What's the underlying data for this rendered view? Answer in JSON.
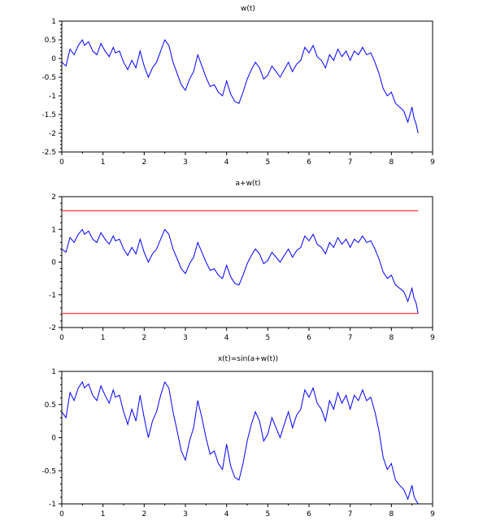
{
  "figure": {
    "background": "#ffffff",
    "axis_color": "#000000"
  },
  "chart_data": [
    {
      "type": "line",
      "title": "w(t)",
      "xlabel": "",
      "ylabel": "",
      "xlim": [
        0,
        9
      ],
      "ylim": [
        -2.5,
        1
      ],
      "x_ticks": [
        0,
        1,
        2,
        3,
        4,
        5,
        6,
        7,
        8,
        9
      ],
      "y_ticks": [
        -2.5,
        -2,
        -1.5,
        -1,
        -0.5,
        0,
        0.5,
        1
      ],
      "x_tick_labels": [
        "0",
        "1",
        "2",
        "3",
        "4",
        "5",
        "6",
        "7",
        "8",
        "9"
      ],
      "y_tick_labels": [
        "-2.5",
        "-2",
        "-1.5",
        "-1",
        "-0.5",
        "0",
        "0.5",
        "1"
      ],
      "grid": false,
      "series": [
        {
          "color": "#0000ff",
          "x": [
            0,
            0.1,
            0.2,
            0.3,
            0.4,
            0.5,
            0.55,
            0.65,
            0.75,
            0.85,
            0.95,
            1.05,
            1.15,
            1.25,
            1.3,
            1.4,
            1.5,
            1.6,
            1.7,
            1.8,
            1.9,
            2.0,
            2.1,
            2.2,
            2.3,
            2.4,
            2.5,
            2.6,
            2.7,
            2.8,
            2.9,
            3.0,
            3.1,
            3.2,
            3.3,
            3.4,
            3.5,
            3.6,
            3.7,
            3.8,
            3.9,
            4.0,
            4.1,
            4.2,
            4.3,
            4.4,
            4.5,
            4.6,
            4.7,
            4.8,
            4.9,
            5.0,
            5.1,
            5.2,
            5.3,
            5.4,
            5.5,
            5.6,
            5.7,
            5.8,
            5.9,
            6.0,
            6.1,
            6.2,
            6.3,
            6.4,
            6.5,
            6.6,
            6.7,
            6.8,
            6.9,
            7.0,
            7.1,
            7.2,
            7.3,
            7.4,
            7.5,
            7.6,
            7.7,
            7.8,
            7.9,
            8.0,
            8.1,
            8.2,
            8.3,
            8.4,
            8.5,
            8.55,
            8.6,
            8.65
          ],
          "y": [
            -0.1,
            -0.2,
            0.25,
            0.1,
            0.35,
            0.5,
            0.35,
            0.45,
            0.2,
            0.1,
            0.4,
            0.2,
            0.05,
            0.3,
            0.15,
            0.2,
            -0.1,
            -0.3,
            -0.05,
            -0.25,
            0.2,
            -0.2,
            -0.5,
            -0.25,
            -0.1,
            0.2,
            0.5,
            0.35,
            -0.1,
            -0.4,
            -0.7,
            -0.85,
            -0.55,
            -0.35,
            0.1,
            -0.2,
            -0.5,
            -0.75,
            -0.7,
            -0.9,
            -1.0,
            -0.6,
            -0.95,
            -1.15,
            -1.2,
            -0.9,
            -0.55,
            -0.3,
            -0.1,
            -0.25,
            -0.55,
            -0.45,
            -0.2,
            -0.35,
            -0.5,
            -0.3,
            -0.1,
            -0.35,
            -0.15,
            -0.05,
            0.3,
            0.15,
            0.35,
            0.05,
            -0.05,
            -0.25,
            0.1,
            -0.05,
            0.25,
            0.05,
            0.2,
            -0.05,
            0.2,
            0.1,
            0.3,
            0.1,
            0.15,
            -0.1,
            -0.4,
            -0.8,
            -1.0,
            -0.9,
            -1.2,
            -1.3,
            -1.4,
            -1.7,
            -1.3,
            -1.6,
            -1.75,
            -2.0
          ]
        }
      ]
    },
    {
      "type": "line",
      "title": "a+w(t)",
      "xlabel": "",
      "ylabel": "",
      "xlim": [
        0,
        9
      ],
      "ylim": [
        -2,
        2
      ],
      "x_ticks": [
        0,
        1,
        2,
        3,
        4,
        5,
        6,
        7,
        8,
        9
      ],
      "y_ticks": [
        -2,
        -1,
        0,
        1,
        2
      ],
      "x_tick_labels": [
        "0",
        "1",
        "2",
        "3",
        "4",
        "5",
        "6",
        "7",
        "8",
        "9"
      ],
      "y_tick_labels": [
        "-2",
        "-1",
        "0",
        "1",
        "2"
      ],
      "grid": false,
      "series": [
        {
          "color": "#0000ff",
          "x": [
            0,
            0.1,
            0.2,
            0.3,
            0.4,
            0.5,
            0.55,
            0.65,
            0.75,
            0.85,
            0.95,
            1.05,
            1.15,
            1.25,
            1.3,
            1.4,
            1.5,
            1.6,
            1.7,
            1.8,
            1.9,
            2.0,
            2.1,
            2.2,
            2.3,
            2.4,
            2.5,
            2.6,
            2.7,
            2.8,
            2.9,
            3.0,
            3.1,
            3.2,
            3.3,
            3.4,
            3.5,
            3.6,
            3.7,
            3.8,
            3.9,
            4.0,
            4.1,
            4.2,
            4.3,
            4.4,
            4.5,
            4.6,
            4.7,
            4.8,
            4.9,
            5.0,
            5.1,
            5.2,
            5.3,
            5.4,
            5.5,
            5.6,
            5.7,
            5.8,
            5.9,
            6.0,
            6.1,
            6.2,
            6.3,
            6.4,
            6.5,
            6.6,
            6.7,
            6.8,
            6.9,
            7.0,
            7.1,
            7.2,
            7.3,
            7.4,
            7.5,
            7.6,
            7.7,
            7.8,
            7.9,
            8.0,
            8.1,
            8.2,
            8.3,
            8.4,
            8.5,
            8.55,
            8.6,
            8.65
          ],
          "y": [
            0.4,
            0.3,
            0.75,
            0.6,
            0.85,
            1.0,
            0.85,
            0.95,
            0.7,
            0.6,
            0.9,
            0.7,
            0.55,
            0.8,
            0.65,
            0.7,
            0.4,
            0.2,
            0.45,
            0.25,
            0.7,
            0.3,
            0.0,
            0.25,
            0.4,
            0.7,
            1.0,
            0.85,
            0.4,
            0.1,
            -0.2,
            -0.35,
            -0.05,
            0.15,
            0.6,
            0.3,
            0.0,
            -0.25,
            -0.2,
            -0.4,
            -0.5,
            -0.1,
            -0.45,
            -0.65,
            -0.7,
            -0.4,
            -0.05,
            0.2,
            0.4,
            0.25,
            -0.05,
            0.05,
            0.3,
            0.15,
            0.0,
            0.2,
            0.4,
            0.15,
            0.35,
            0.45,
            0.8,
            0.65,
            0.85,
            0.55,
            0.45,
            0.25,
            0.6,
            0.45,
            0.75,
            0.55,
            0.7,
            0.45,
            0.7,
            0.6,
            0.8,
            0.6,
            0.65,
            0.4,
            0.1,
            -0.3,
            -0.5,
            -0.4,
            -0.7,
            -0.8,
            -0.9,
            -1.2,
            -0.8,
            -1.1,
            -1.25,
            -1.57
          ]
        },
        {
          "color": "#ff0000",
          "x": [
            0,
            8.65
          ],
          "y": [
            1.5708,
            1.5708
          ]
        },
        {
          "color": "#ff0000",
          "x": [
            0,
            8.65
          ],
          "y": [
            -1.5708,
            -1.5708
          ]
        }
      ]
    },
    {
      "type": "line",
      "title": "x(t)=sin(a+w(t))",
      "xlabel": "",
      "ylabel": "",
      "xlim": [
        0,
        9
      ],
      "ylim": [
        -1,
        1
      ],
      "x_ticks": [
        0,
        1,
        2,
        3,
        4,
        5,
        6,
        7,
        8,
        9
      ],
      "y_ticks": [
        -1,
        -0.5,
        0,
        0.5,
        1
      ],
      "x_tick_labels": [
        "0",
        "1",
        "2",
        "3",
        "4",
        "5",
        "6",
        "7",
        "8",
        "9"
      ],
      "y_tick_labels": [
        "-1",
        "-0.5",
        "0",
        "0.5",
        "1"
      ],
      "grid": false,
      "series": [
        {
          "color": "#0000ff",
          "x": [
            0,
            0.1,
            0.2,
            0.3,
            0.4,
            0.5,
            0.55,
            0.65,
            0.75,
            0.85,
            0.95,
            1.05,
            1.15,
            1.25,
            1.3,
            1.4,
            1.5,
            1.6,
            1.7,
            1.8,
            1.9,
            2.0,
            2.1,
            2.2,
            2.3,
            2.4,
            2.5,
            2.6,
            2.7,
            2.8,
            2.9,
            3.0,
            3.1,
            3.2,
            3.3,
            3.4,
            3.5,
            3.6,
            3.7,
            3.8,
            3.9,
            4.0,
            4.1,
            4.2,
            4.3,
            4.4,
            4.5,
            4.6,
            4.7,
            4.8,
            4.9,
            5.0,
            5.1,
            5.2,
            5.3,
            5.4,
            5.5,
            5.6,
            5.7,
            5.8,
            5.9,
            6.0,
            6.1,
            6.2,
            6.3,
            6.4,
            6.5,
            6.6,
            6.7,
            6.8,
            6.9,
            7.0,
            7.1,
            7.2,
            7.3,
            7.4,
            7.5,
            7.6,
            7.7,
            7.8,
            7.9,
            8.0,
            8.1,
            8.2,
            8.3,
            8.4,
            8.5,
            8.55,
            8.6,
            8.65
          ],
          "y": [
            0.39,
            0.3,
            0.68,
            0.56,
            0.75,
            0.84,
            0.75,
            0.81,
            0.64,
            0.56,
            0.78,
            0.64,
            0.52,
            0.72,
            0.61,
            0.64,
            0.39,
            0.2,
            0.43,
            0.25,
            0.64,
            0.3,
            0.0,
            0.25,
            0.39,
            0.64,
            0.84,
            0.75,
            0.39,
            0.1,
            -0.2,
            -0.34,
            -0.05,
            0.15,
            0.56,
            0.3,
            0.0,
            -0.25,
            -0.2,
            -0.39,
            -0.48,
            -0.1,
            -0.43,
            -0.6,
            -0.64,
            -0.39,
            -0.05,
            0.2,
            0.39,
            0.25,
            -0.05,
            0.05,
            0.3,
            0.15,
            0.0,
            0.2,
            0.39,
            0.15,
            0.34,
            0.43,
            0.72,
            0.61,
            0.75,
            0.52,
            0.43,
            0.25,
            0.56,
            0.43,
            0.68,
            0.52,
            0.64,
            0.43,
            0.64,
            0.56,
            0.72,
            0.56,
            0.61,
            0.39,
            0.1,
            -0.3,
            -0.48,
            -0.39,
            -0.64,
            -0.72,
            -0.78,
            -0.93,
            -0.72,
            -0.89,
            -0.95,
            -1.0
          ]
        }
      ]
    }
  ]
}
